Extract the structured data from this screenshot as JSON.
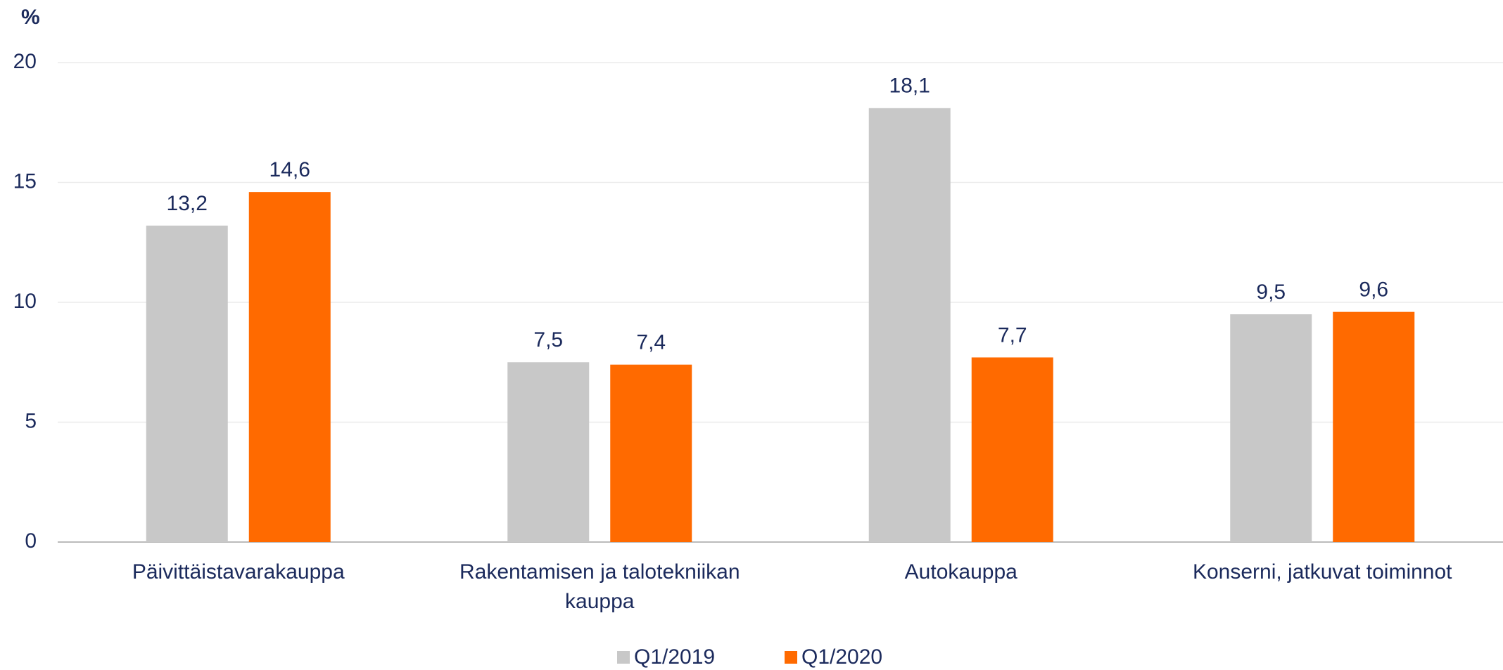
{
  "chart_data": {
    "type": "bar",
    "y_label": "%",
    "categories": [
      "Päivittäistavarakauppa",
      "Rakentamisen ja talotekniikan kauppa",
      "Autokauppa",
      "Konserni, jatkuvat toiminnot"
    ],
    "series": [
      {
        "name": "Q1/2019",
        "color": "#c8c8c8",
        "values": [
          13.2,
          7.5,
          18.1,
          9.5
        ],
        "value_labels": [
          "13,2",
          "7,5",
          "18,1",
          "9,5"
        ]
      },
      {
        "name": "Q1/2020",
        "color": "#ff6a00",
        "values": [
          14.6,
          7.4,
          7.7,
          9.6
        ],
        "value_labels": [
          "14,6",
          "7,4",
          "7,7",
          "9,6"
        ]
      }
    ],
    "ylim": [
      0,
      20
    ],
    "yticks": [
      0,
      5,
      10,
      15,
      20
    ],
    "grid": true,
    "legend": "bottom"
  }
}
